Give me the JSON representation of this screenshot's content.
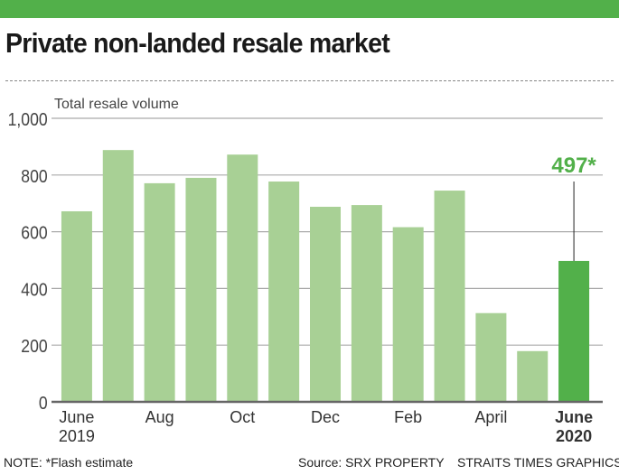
{
  "header": {
    "title": "Private non-landed resale market"
  },
  "chart_data": {
    "type": "bar",
    "ylabel": "Total resale volume",
    "ylim": [
      0,
      1000
    ],
    "yticks": [
      "0",
      "200",
      "400",
      "600",
      "800",
      "1,000"
    ],
    "grid": true,
    "categories": [
      "June 2019",
      "July 2019",
      "Aug 2019",
      "Sep 2019",
      "Oct 2019",
      "Nov 2019",
      "Dec 2019",
      "Jan 2020",
      "Feb 2020",
      "Mar 2020",
      "April 2020",
      "May 2020",
      "June 2020"
    ],
    "xtick_labels": [
      {
        "index": 0,
        "lines": [
          "June",
          "2019"
        ]
      },
      {
        "index": 2,
        "lines": [
          "Aug"
        ]
      },
      {
        "index": 4,
        "lines": [
          "Oct"
        ]
      },
      {
        "index": 6,
        "lines": [
          "Dec"
        ]
      },
      {
        "index": 8,
        "lines": [
          "Feb"
        ]
      },
      {
        "index": 10,
        "lines": [
          "April"
        ]
      },
      {
        "index": 12,
        "lines": [
          "June",
          "2020"
        ],
        "bold": true
      }
    ],
    "values": [
      672,
      888,
      771,
      790,
      872,
      777,
      688,
      694,
      616,
      745,
      313,
      179,
      497
    ],
    "annotation": {
      "index": 12,
      "text": "497*"
    },
    "colors": {
      "bar": "#a8d095",
      "highlight": "#52b04a",
      "annotation": "#52b04a"
    }
  },
  "footer": {
    "note": "NOTE: *Flash estimate",
    "source": "Source: SRX PROPERTY",
    "credit": "STRAITS TIMES GRAPHICS"
  }
}
